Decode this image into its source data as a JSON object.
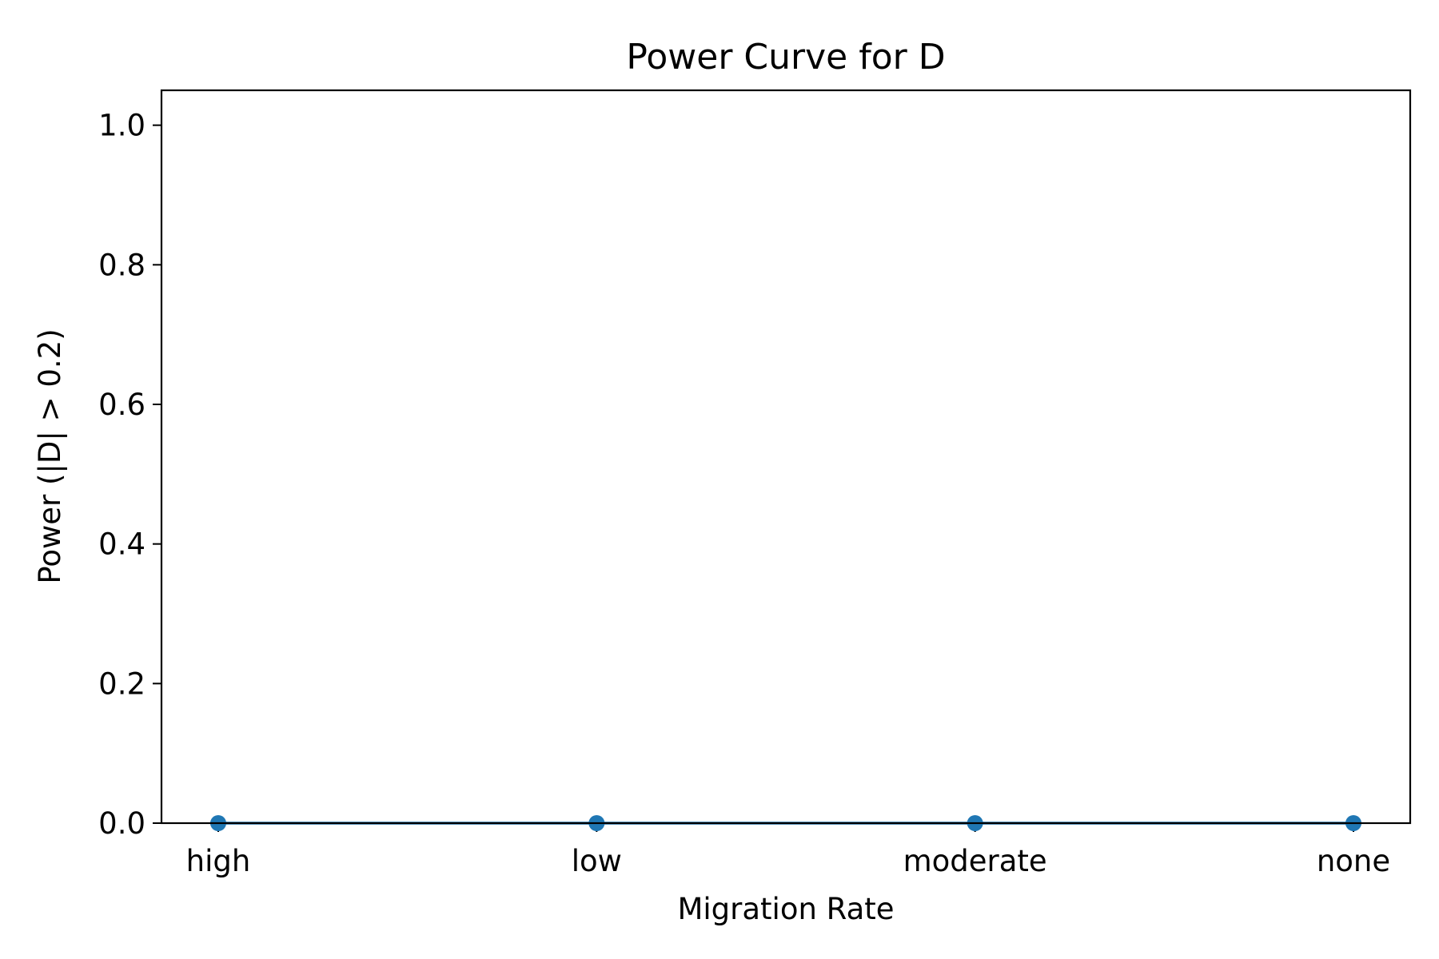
{
  "chart_data": {
    "type": "line",
    "title": "Power Curve for D",
    "xlabel": "Migration Rate",
    "ylabel": "Power (|D| > 0.2)",
    "categories": [
      "high",
      "low",
      "moderate",
      "none"
    ],
    "series": [
      {
        "values": [
          0.0,
          0.0,
          0.0,
          0.0
        ],
        "color": "#1f77b4",
        "marker": "circle"
      }
    ],
    "ylim": [
      0.0,
      1.05
    ],
    "yticks": [
      0.0,
      0.2,
      0.4,
      0.6,
      0.8,
      1.0
    ],
    "ytick_labels": [
      "0.0",
      "0.2",
      "0.4",
      "0.6",
      "0.8",
      "1.0"
    ],
    "grid": false,
    "legend": "none"
  }
}
